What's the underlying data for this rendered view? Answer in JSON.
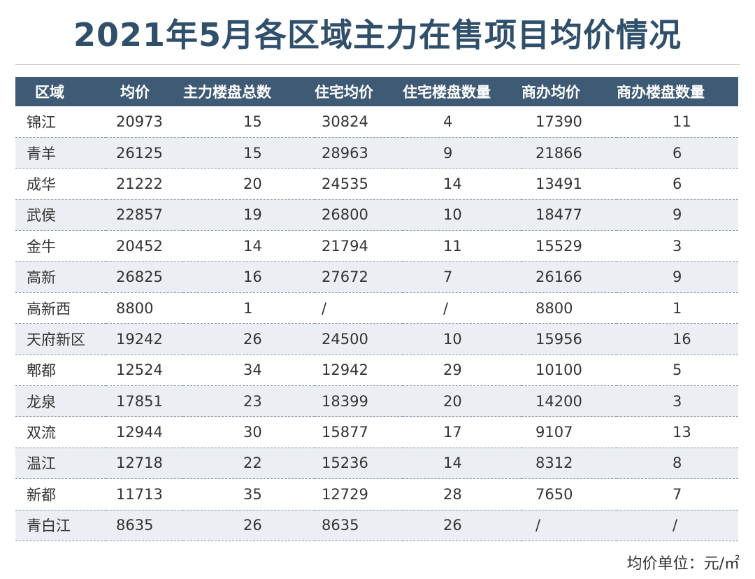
{
  "title": "2021年5月各区域主力在售项目均价情况",
  "unit_note": "均价单位：元/㎡",
  "table": {
    "headers": [
      "区域",
      "均价",
      "主力楼盘总数",
      "住宅均价",
      "住宅楼盘数量",
      "商办均价",
      "商办楼盘数量"
    ],
    "rows": [
      [
        "锦江",
        "20973",
        "15",
        "30824",
        "4",
        "17390",
        "11"
      ],
      [
        "青羊",
        "26125",
        "15",
        "28963",
        "9",
        "21866",
        "6"
      ],
      [
        "成华",
        "21222",
        "20",
        "24535",
        "14",
        "13491",
        "6"
      ],
      [
        "武侯",
        "22857",
        "19",
        "26800",
        "10",
        "18477",
        "9"
      ],
      [
        "金牛",
        "20452",
        "14",
        "21794",
        "11",
        "15529",
        "3"
      ],
      [
        "高新",
        "26825",
        "16",
        "27672",
        "7",
        "26166",
        "9"
      ],
      [
        "高新西",
        "8800",
        "1",
        "/",
        "/",
        "8800",
        "1"
      ],
      [
        "天府新区",
        "19242",
        "26",
        "24500",
        "10",
        "15956",
        "16"
      ],
      [
        "郫都",
        "12524",
        "34",
        "12942",
        "29",
        "10100",
        "5"
      ],
      [
        "龙泉",
        "17851",
        "23",
        "18399",
        "20",
        "14200",
        "3"
      ],
      [
        "双流",
        "12944",
        "30",
        "15877",
        "17",
        "9107",
        "13"
      ],
      [
        "温江",
        "12718",
        "22",
        "15236",
        "14",
        "8312",
        "8"
      ],
      [
        "新都",
        "11713",
        "35",
        "12729",
        "28",
        "7650",
        "7"
      ],
      [
        "青白江",
        "8635",
        "26",
        "8635",
        "26",
        "/",
        "/"
      ]
    ]
  },
  "colors": {
    "title": "#2f4f6b",
    "header_bg": "#3e5a74",
    "stripe_bg": "#ebeef2",
    "divider": "#8a98a8"
  }
}
